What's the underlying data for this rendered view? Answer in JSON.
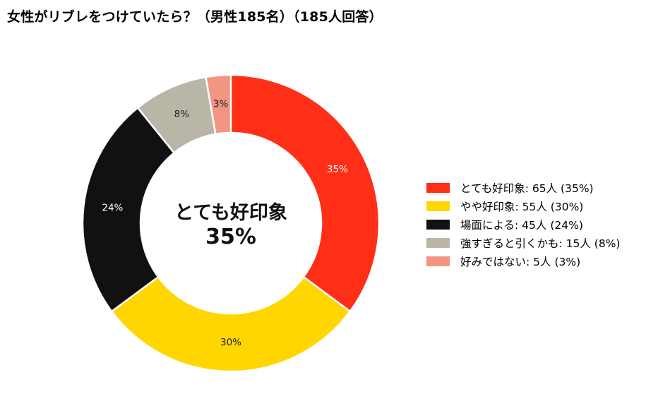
{
  "chart_data": {
    "type": "pie",
    "variant": "donut",
    "title": "女性がリブレをつけていたら？（男性185名）（185人回答）",
    "unit": "人",
    "slices": [
      {
        "label": "とても好印象",
        "value": 65,
        "percent_label": "35%",
        "color": "#ff2e17",
        "label_color": "#ffffff",
        "legend": "とても好印象:  65人 (35%)"
      },
      {
        "label": "やや好印象",
        "value": 55,
        "percent_label": "30%",
        "color": "#ffd600",
        "label_color": "#222222",
        "legend": "やや好印象:  55人 (30%)"
      },
      {
        "label": "場面による",
        "value": 45,
        "percent_label": "24%",
        "color": "#111111",
        "label_color": "#ffffff",
        "legend": "場面による:  45人 (24%)"
      },
      {
        "label": "強すぎると引くかも",
        "value": 15,
        "percent_label": "8%",
        "color": "#b9b6a8",
        "label_color": "#222222",
        "legend": "強すぎると引くかも:  15人 (8%)"
      },
      {
        "label": "好みではない",
        "value": 5,
        "percent_label": "3%",
        "color": "#f29583",
        "label_color": "#222222",
        "legend": "好みではない:  5人 (3%)"
      }
    ],
    "center_label": "とても好印象",
    "center_value": "35%",
    "legend_position": "right"
  }
}
